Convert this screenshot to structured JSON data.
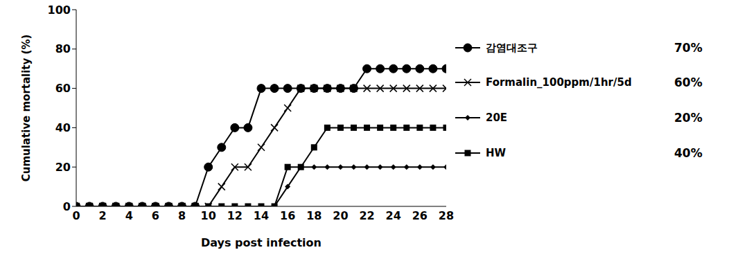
{
  "chart_data": {
    "type": "line",
    "x_label": "Days post infection",
    "y_label": "Cumulative mortality (%)",
    "x": [
      0,
      1,
      2,
      3,
      4,
      5,
      6,
      7,
      8,
      9,
      10,
      11,
      12,
      13,
      14,
      15,
      16,
      17,
      18,
      19,
      20,
      21,
      22,
      23,
      24,
      25,
      26,
      27,
      28
    ],
    "xlim": [
      0,
      28
    ],
    "xticks": [
      0,
      2,
      4,
      6,
      8,
      10,
      12,
      14,
      16,
      18,
      20,
      22,
      24,
      26,
      28
    ],
    "ylim": [
      0,
      100
    ],
    "yticks": [
      0,
      20,
      40,
      60,
      80,
      100
    ],
    "grid": false,
    "legend": "right",
    "annotations": [
      "70%",
      "60%",
      "20%",
      "40%"
    ],
    "series": [
      {
        "name": "감염대조구",
        "color": "#000000",
        "marker": "circle",
        "values": [
          0,
          0,
          0,
          0,
          0,
          0,
          0,
          0,
          0,
          0,
          20,
          30,
          40,
          40,
          60,
          60,
          60,
          60,
          60,
          60,
          60,
          60,
          70,
          70,
          70,
          70,
          70,
          70,
          70
        ]
      },
      {
        "name": "Formalin_100ppm/1hr/5d",
        "color": "#000000",
        "marker": "cross",
        "values": [
          0,
          0,
          0,
          0,
          0,
          0,
          0,
          0,
          0,
          0,
          0,
          10,
          20,
          20,
          30,
          40,
          50,
          60,
          60,
          60,
          60,
          60,
          60,
          60,
          60,
          60,
          60,
          60,
          60
        ]
      },
      {
        "name": "20E",
        "color": "#000000",
        "marker": "diamond",
        "values": [
          0,
          0,
          0,
          0,
          0,
          0,
          0,
          0,
          0,
          0,
          0,
          0,
          0,
          0,
          0,
          0,
          10,
          20,
          20,
          20,
          20,
          20,
          20,
          20,
          20,
          20,
          20,
          20,
          20
        ]
      },
      {
        "name": "HW",
        "color": "#000000",
        "marker": "square",
        "values": [
          0,
          0,
          0,
          0,
          0,
          0,
          0,
          0,
          0,
          0,
          0,
          0,
          0,
          0,
          0,
          0,
          20,
          20,
          30,
          40,
          40,
          40,
          40,
          40,
          40,
          40,
          40,
          40,
          40
        ]
      }
    ]
  }
}
